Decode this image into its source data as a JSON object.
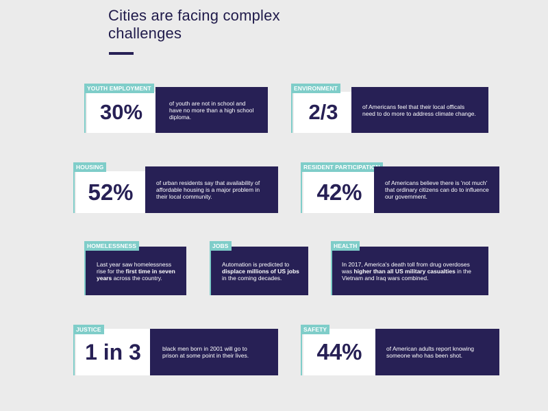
{
  "page": {
    "title_line1": "Cities are facing complex",
    "title_line2": "challenges"
  },
  "cards": {
    "youth": {
      "tag": "YOUTH EMPLOYMENT",
      "stat": "30%",
      "desc": "of youth are not in school and have no more than a high school diploma."
    },
    "environment": {
      "tag": "ENVIRONMENT",
      "stat": "2/3",
      "desc": "of Americans feel that their local officals need to do more to address climate change."
    },
    "housing": {
      "tag": "HOUSING",
      "stat": "52%",
      "desc": "of urban residents say that availability of affordable housing is a major problem in their local community."
    },
    "resident": {
      "tag": "RESIDENT PARTICIPATION",
      "stat": "42%",
      "desc": "of Americans believe there is 'not much' that ordinary citizens can do to influence our government."
    },
    "homelessness": {
      "tag": "HOMELESSNESS",
      "desc_pre": "Last year saw homelessness rise for the ",
      "desc_bold": "first time in seven years",
      "desc_post": " across the country."
    },
    "jobs": {
      "tag": "JOBS",
      "desc_pre": "Automation is predicted to ",
      "desc_bold": "displace millions of US jobs",
      "desc_post": " in the coming decades."
    },
    "health": {
      "tag": "HEALTH",
      "desc_pre": "In 2017, America's death toll from drug overdoses was ",
      "desc_bold": "higher than all US military casualties",
      "desc_post": " in the Vietnam and Iraq wars combined."
    },
    "justice": {
      "tag": "JUSTICE",
      "stat": "1 in 3",
      "desc": "black men born in 2001 will go to prison at some point in their lives."
    },
    "safety": {
      "tag": "SAFETY",
      "stat": "44%",
      "desc": "of American adults report knowing someone who has been shot."
    }
  },
  "colors": {
    "navy": "#272055",
    "teal": "#7fcdc9",
    "background": "#ebebeb"
  }
}
